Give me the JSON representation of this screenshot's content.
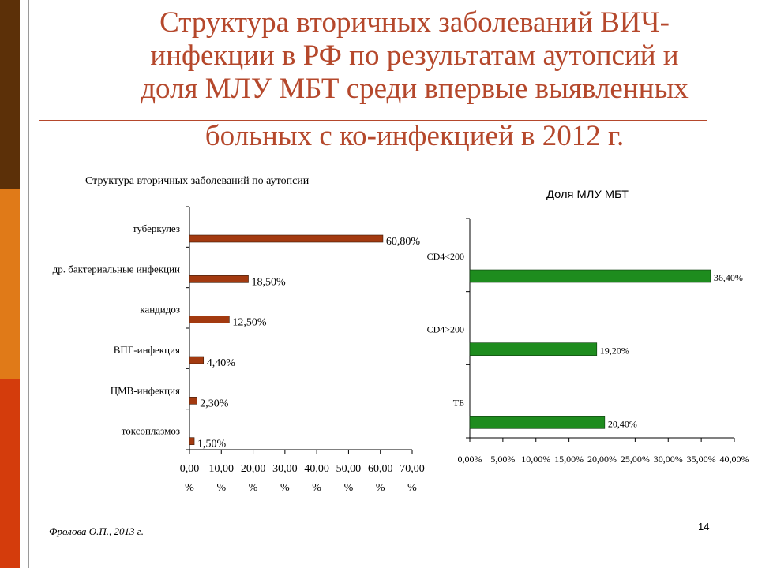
{
  "slide": {
    "title_lines": [
      "Структура вторичных заболеваний ВИЧ-",
      "инфекции в РФ по результатам аутопсий и",
      "доля МЛУ МБТ среди впервые выявленных",
      "больных с ко-инфекцией в 2012 г."
    ],
    "source": "Фролова О.П., 2013 г.",
    "page_number": "14",
    "colors": {
      "title": "#b5482c",
      "side_dark": "#5c3008",
      "side_mid": "#e07a18",
      "side_red": "#d43c0c"
    }
  },
  "chart_data": [
    {
      "type": "bar",
      "orientation": "horizontal",
      "title": "Структура вторичных заболеваний по аутопсии",
      "categories": [
        "туберкулез",
        "др. бактериальные инфекции",
        "кандидоз",
        "ВПГ-инфекция",
        "ЦМВ-инфекция",
        "токсоплазмоз"
      ],
      "values": [
        60.8,
        18.5,
        12.5,
        4.4,
        2.3,
        1.5
      ],
      "value_labels": [
        "60,80%",
        "18,50%",
        "12,50%",
        "4,40%",
        "2,30%",
        "1,50%"
      ],
      "xlim": [
        0,
        70
      ],
      "xticks": [
        0,
        10,
        20,
        30,
        40,
        50,
        60,
        70
      ],
      "xtick_labels": [
        "0,00",
        "10,00",
        "20,00",
        "30,00",
        "40,00",
        "50,00",
        "60,00",
        "70,00"
      ],
      "xtick_units": [
        "%",
        "%",
        "%",
        "%",
        "%",
        "%",
        "%",
        "%"
      ],
      "bar_color": "#a33a10",
      "grid": false
    },
    {
      "type": "bar",
      "orientation": "horizontal",
      "title": "Доля МЛУ МБТ",
      "categories": [
        "CD4<200",
        "CD4>200",
        "ТБ"
      ],
      "values": [
        36.4,
        19.2,
        20.4
      ],
      "value_labels": [
        "36,40%",
        "19,20%",
        "20,40%"
      ],
      "xlim": [
        0,
        40
      ],
      "xticks": [
        0,
        5,
        10,
        15,
        20,
        25,
        30,
        35,
        40
      ],
      "xtick_labels": [
        "0,00%",
        "5,00%",
        "10,00%",
        "15,00%",
        "20,00%",
        "25,00%",
        "30,00%",
        "35,00%",
        "40,00%"
      ],
      "bar_color": "#1e8c1e",
      "grid": false
    }
  ]
}
